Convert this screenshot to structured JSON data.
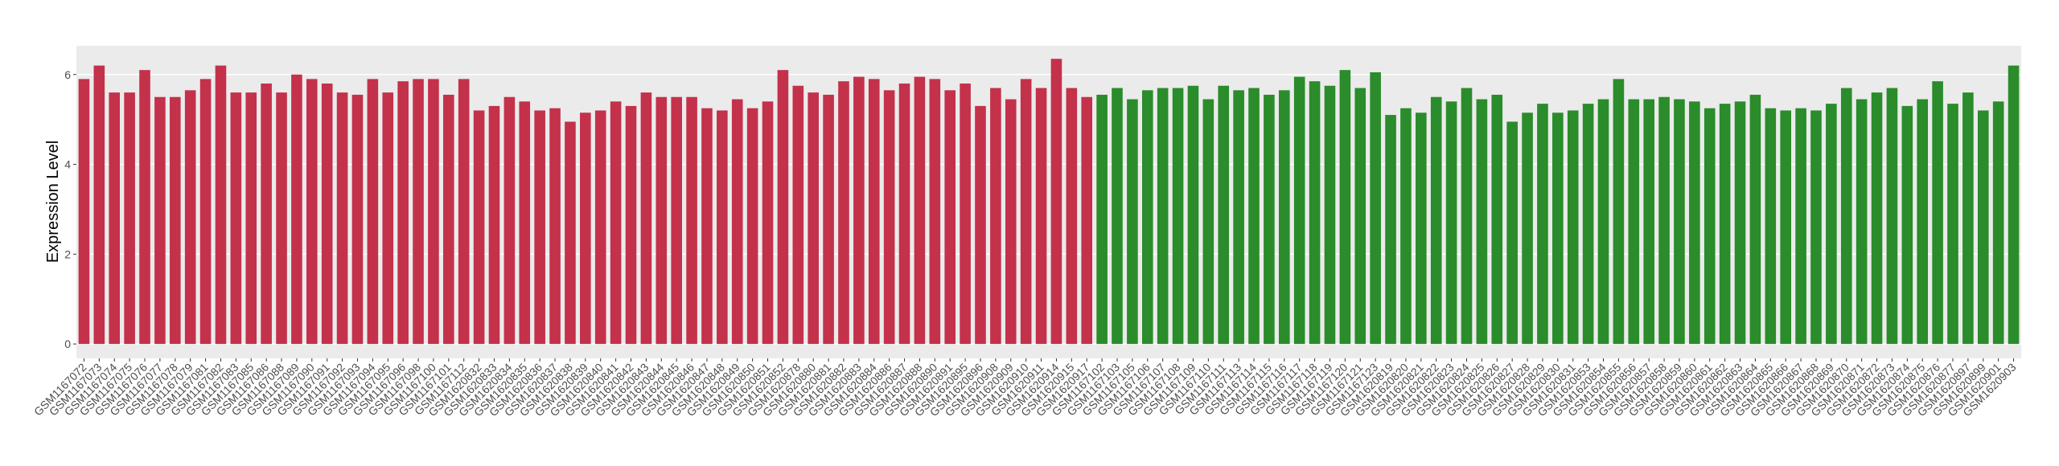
{
  "chart_data": {
    "type": "bar",
    "y_label": "Expression Level",
    "categories": [
      "GSM1167072",
      "GSM1167073",
      "GSM1167074",
      "GSM1167075",
      "GSM1167076",
      "GSM1167077",
      "GSM1167078",
      "GSM1167079",
      "GSM1167081",
      "GSM1167082",
      "GSM1167083",
      "GSM1167085",
      "GSM1167086",
      "GSM1167088",
      "GSM1167089",
      "GSM1167090",
      "GSM1167091",
      "GSM1167092",
      "GSM1167093",
      "GSM1167094",
      "GSM1167095",
      "GSM1167096",
      "GSM1167098",
      "GSM1167100",
      "GSM1167101",
      "GSM1167112",
      "GSM1620832",
      "GSM1620833",
      "GSM1620834",
      "GSM1620835",
      "GSM1620836",
      "GSM1620837",
      "GSM1620838",
      "GSM1620839",
      "GSM1620840",
      "GSM1620841",
      "GSM1620842",
      "GSM1620843",
      "GSM1620844",
      "GSM1620845",
      "GSM1620846",
      "GSM1620847",
      "GSM1620848",
      "GSM1620849",
      "GSM1620850",
      "GSM1620851",
      "GSM1620852",
      "GSM1620878",
      "GSM1620880",
      "GSM1620881",
      "GSM1620882",
      "GSM1620883",
      "GSM1620884",
      "GSM1620886",
      "GSM1620887",
      "GSM1620888",
      "GSM1620890",
      "GSM1620891",
      "GSM1620895",
      "GSM1620896",
      "GSM1620908",
      "GSM1620909",
      "GSM1620910",
      "GSM1620911",
      "GSM1620914",
      "GSM1620915",
      "GSM1620917",
      "GSM1167102",
      "GSM1167103",
      "GSM1167105",
      "GSM1167106",
      "GSM1167107",
      "GSM1167108",
      "GSM1167109",
      "GSM1167110",
      "GSM1167111",
      "GSM1167113",
      "GSM1167114",
      "GSM1167115",
      "GSM1167116",
      "GSM1167117",
      "GSM1167118",
      "GSM1167119",
      "GSM1167120",
      "GSM1167121",
      "GSM1167123",
      "GSM1620819",
      "GSM1620820",
      "GSM1620821",
      "GSM1620822",
      "GSM1620823",
      "GSM1620824",
      "GSM1620825",
      "GSM1620826",
      "GSM1620827",
      "GSM1620828",
      "GSM1620829",
      "GSM1620830",
      "GSM1620831",
      "GSM1620853",
      "GSM1620854",
      "GSM1620855",
      "GSM1620856",
      "GSM1620857",
      "GSM1620858",
      "GSM1620859",
      "GSM1620860",
      "GSM1620861",
      "GSM1620862",
      "GSM1620863",
      "GSM1620864",
      "GSM1620865",
      "GSM1620866",
      "GSM1620867",
      "GSM1620868",
      "GSM1620869",
      "GSM1620870",
      "GSM1620871",
      "GSM1620872",
      "GSM1620873",
      "GSM1620874",
      "GSM1620875",
      "GSM1620876",
      "GSM1620877",
      "GSM1620897",
      "GSM1620899",
      "GSM1620901",
      "GSM1620903"
    ],
    "series": [
      {
        "color": "#c4314b",
        "values": [
          5.9,
          6.2,
          5.6,
          5.6,
          6.1,
          5.5,
          5.5,
          5.65,
          5.9,
          6.2,
          5.6,
          5.6,
          5.8,
          5.6,
          6.0,
          5.9,
          5.8,
          5.6,
          5.55,
          5.9,
          5.6,
          5.85,
          5.9,
          5.9,
          5.55,
          5.9,
          5.2,
          5.3,
          5.5,
          5.4,
          5.2,
          5.25,
          4.95,
          5.15,
          5.2,
          5.4,
          5.3,
          5.6,
          5.5,
          5.5,
          5.5,
          5.25,
          5.2,
          5.45,
          5.25,
          5.4,
          6.1,
          5.75,
          5.6,
          5.55,
          5.85,
          5.95,
          5.9,
          5.65,
          5.8,
          5.95,
          5.9,
          5.65,
          5.8,
          5.3,
          5.7,
          5.45,
          5.9,
          5.7,
          6.35,
          5.7,
          5.5,
          null,
          null,
          null,
          null,
          null,
          null,
          null,
          null,
          null,
          null,
          null,
          null,
          null,
          null,
          null,
          null,
          null,
          null,
          null,
          null,
          null,
          null,
          null,
          null,
          null,
          null,
          null,
          null,
          null,
          null,
          null,
          null,
          null,
          null,
          null,
          null,
          null,
          null,
          null,
          null,
          null,
          null,
          null,
          null,
          null,
          null,
          null,
          null,
          null,
          null,
          null,
          null,
          null,
          null,
          null,
          null,
          null,
          null,
          null,
          null,
          null
        ]
      },
      {
        "color": "#2a8c2a",
        "values": [
          null,
          null,
          null,
          null,
          null,
          null,
          null,
          null,
          null,
          null,
          null,
          null,
          null,
          null,
          null,
          null,
          null,
          null,
          null,
          null,
          null,
          null,
          null,
          null,
          null,
          null,
          null,
          null,
          null,
          null,
          null,
          null,
          null,
          null,
          null,
          null,
          null,
          null,
          null,
          null,
          null,
          null,
          null,
          null,
          null,
          null,
          null,
          null,
          null,
          null,
          null,
          null,
          null,
          null,
          null,
          null,
          null,
          null,
          null,
          null,
          null,
          null,
          null,
          null,
          null,
          null,
          null,
          5.55,
          5.7,
          5.45,
          5.65,
          5.7,
          5.7,
          5.75,
          5.45,
          5.75,
          5.65,
          5.7,
          5.55,
          5.65,
          5.95,
          5.85,
          5.75,
          6.1,
          5.7,
          6.05,
          5.1,
          5.25,
          5.15,
          5.5,
          5.4,
          5.7,
          5.45,
          5.55,
          4.95,
          5.15,
          5.35,
          5.15,
          5.2,
          5.35,
          5.45,
          5.9,
          5.45,
          5.45,
          5.5,
          5.45,
          5.4,
          5.25,
          5.35,
          5.4,
          5.55,
          5.25,
          5.2,
          5.25,
          5.2,
          5.35,
          5.7,
          5.45,
          5.6,
          5.7,
          5.3,
          5.45,
          5.85,
          5.35,
          5.6,
          5.2,
          5.4,
          6.2
        ]
      }
    ],
    "ylim": [
      -0.32,
      6.64
    ],
    "yticks": [
      0,
      2,
      4,
      6
    ],
    "grid": true
  }
}
